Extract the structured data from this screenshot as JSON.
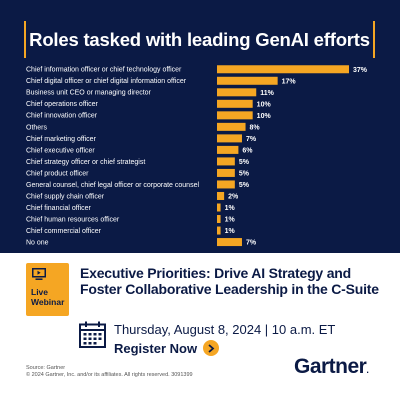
{
  "chart_data": {
    "type": "bar",
    "orientation": "horizontal",
    "title": "Roles tasked with leading GenAI efforts",
    "categories": [
      "Chief information officer or chief technology officer",
      "Chief digital officer or chief digital information officer",
      "Business unit CEO or managing director",
      "Chief operations officer",
      "Chief innovation officer",
      "Others",
      "Chief marketing officer",
      "Chief executive officer",
      "Chief strategy officer or chief strategist",
      "Chief product officer",
      "General counsel, chief legal officer or corporate counsel",
      "Chief supply chain officer",
      "Chief financial officer",
      "Chief human resources officer",
      "Chief commercial officer",
      "No one"
    ],
    "values": [
      37,
      17,
      11,
      10,
      10,
      8,
      7,
      6,
      5,
      5,
      5,
      2,
      1,
      1,
      1,
      7
    ],
    "value_labels": [
      "37%",
      "17%",
      "11%",
      "10%",
      "10%",
      "8%",
      "7%",
      "6%",
      "5%",
      "5%",
      "5%",
      "2%",
      "1%",
      "1%",
      "1%",
      "7%"
    ],
    "bar_color": "#f5a623",
    "background_color": "#0b1a45",
    "xlim": [
      0,
      37
    ]
  },
  "event": {
    "badge_label": "Live Webinar",
    "title": "Executive Priorities: Drive AI Strategy and Foster Collaborative Leadership in the C-Suite",
    "date": "Thursday, August 8, 2024  |  10 a.m. ET",
    "register_label": "Register Now"
  },
  "footer": {
    "source": "Source: Gartner",
    "copyright": "© 2024 Gartner, Inc. and/or its affiliates. All rights reserved. 3091399",
    "logo": "Gartner"
  },
  "colors": {
    "accent": "#f5a623",
    "navy": "#0b1a45"
  },
  "icons": [
    "webinar-monitor-icon",
    "calendar-icon",
    "arrow-right-icon"
  ]
}
